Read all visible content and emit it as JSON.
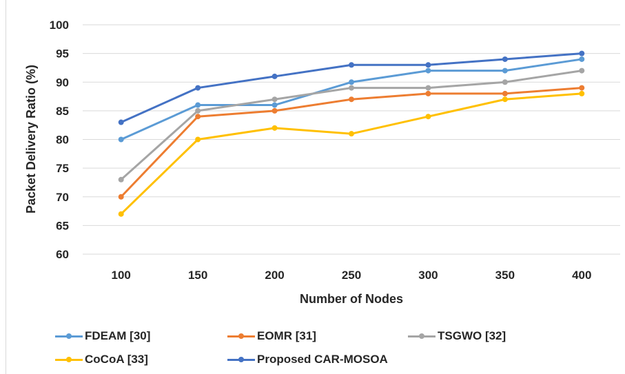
{
  "chart_data": {
    "type": "line",
    "title": "",
    "xlabel": "Number of Nodes",
    "ylabel": "Packet Delivery Ratio (%)",
    "x": [
      100,
      150,
      200,
      250,
      300,
      350,
      400
    ],
    "ylim": [
      60,
      100
    ],
    "yticks": [
      60,
      65,
      70,
      75,
      80,
      85,
      90,
      95,
      100
    ],
    "grid": true,
    "legend_position": "bottom",
    "series": [
      {
        "name": "FDEAM [30]",
        "color": "#5b9bd5",
        "values": [
          80,
          86,
          86,
          90,
          92,
          92,
          94
        ]
      },
      {
        "name": "EOMR [31]",
        "color": "#ed7d31",
        "values": [
          70,
          84,
          85,
          87,
          88,
          88,
          89
        ]
      },
      {
        "name": "TSGWO [32]",
        "color": "#a5a5a5",
        "values": [
          73,
          85,
          87,
          89,
          89,
          90,
          92
        ]
      },
      {
        "name": "CoCoA [33]",
        "color": "#ffc000",
        "values": [
          67,
          80,
          82,
          81,
          84,
          87,
          88
        ]
      },
      {
        "name": "Proposed CAR-MOSOA",
        "color": "#4472c4",
        "values": [
          83,
          89,
          91,
          93,
          93,
          94,
          95
        ]
      }
    ]
  }
}
